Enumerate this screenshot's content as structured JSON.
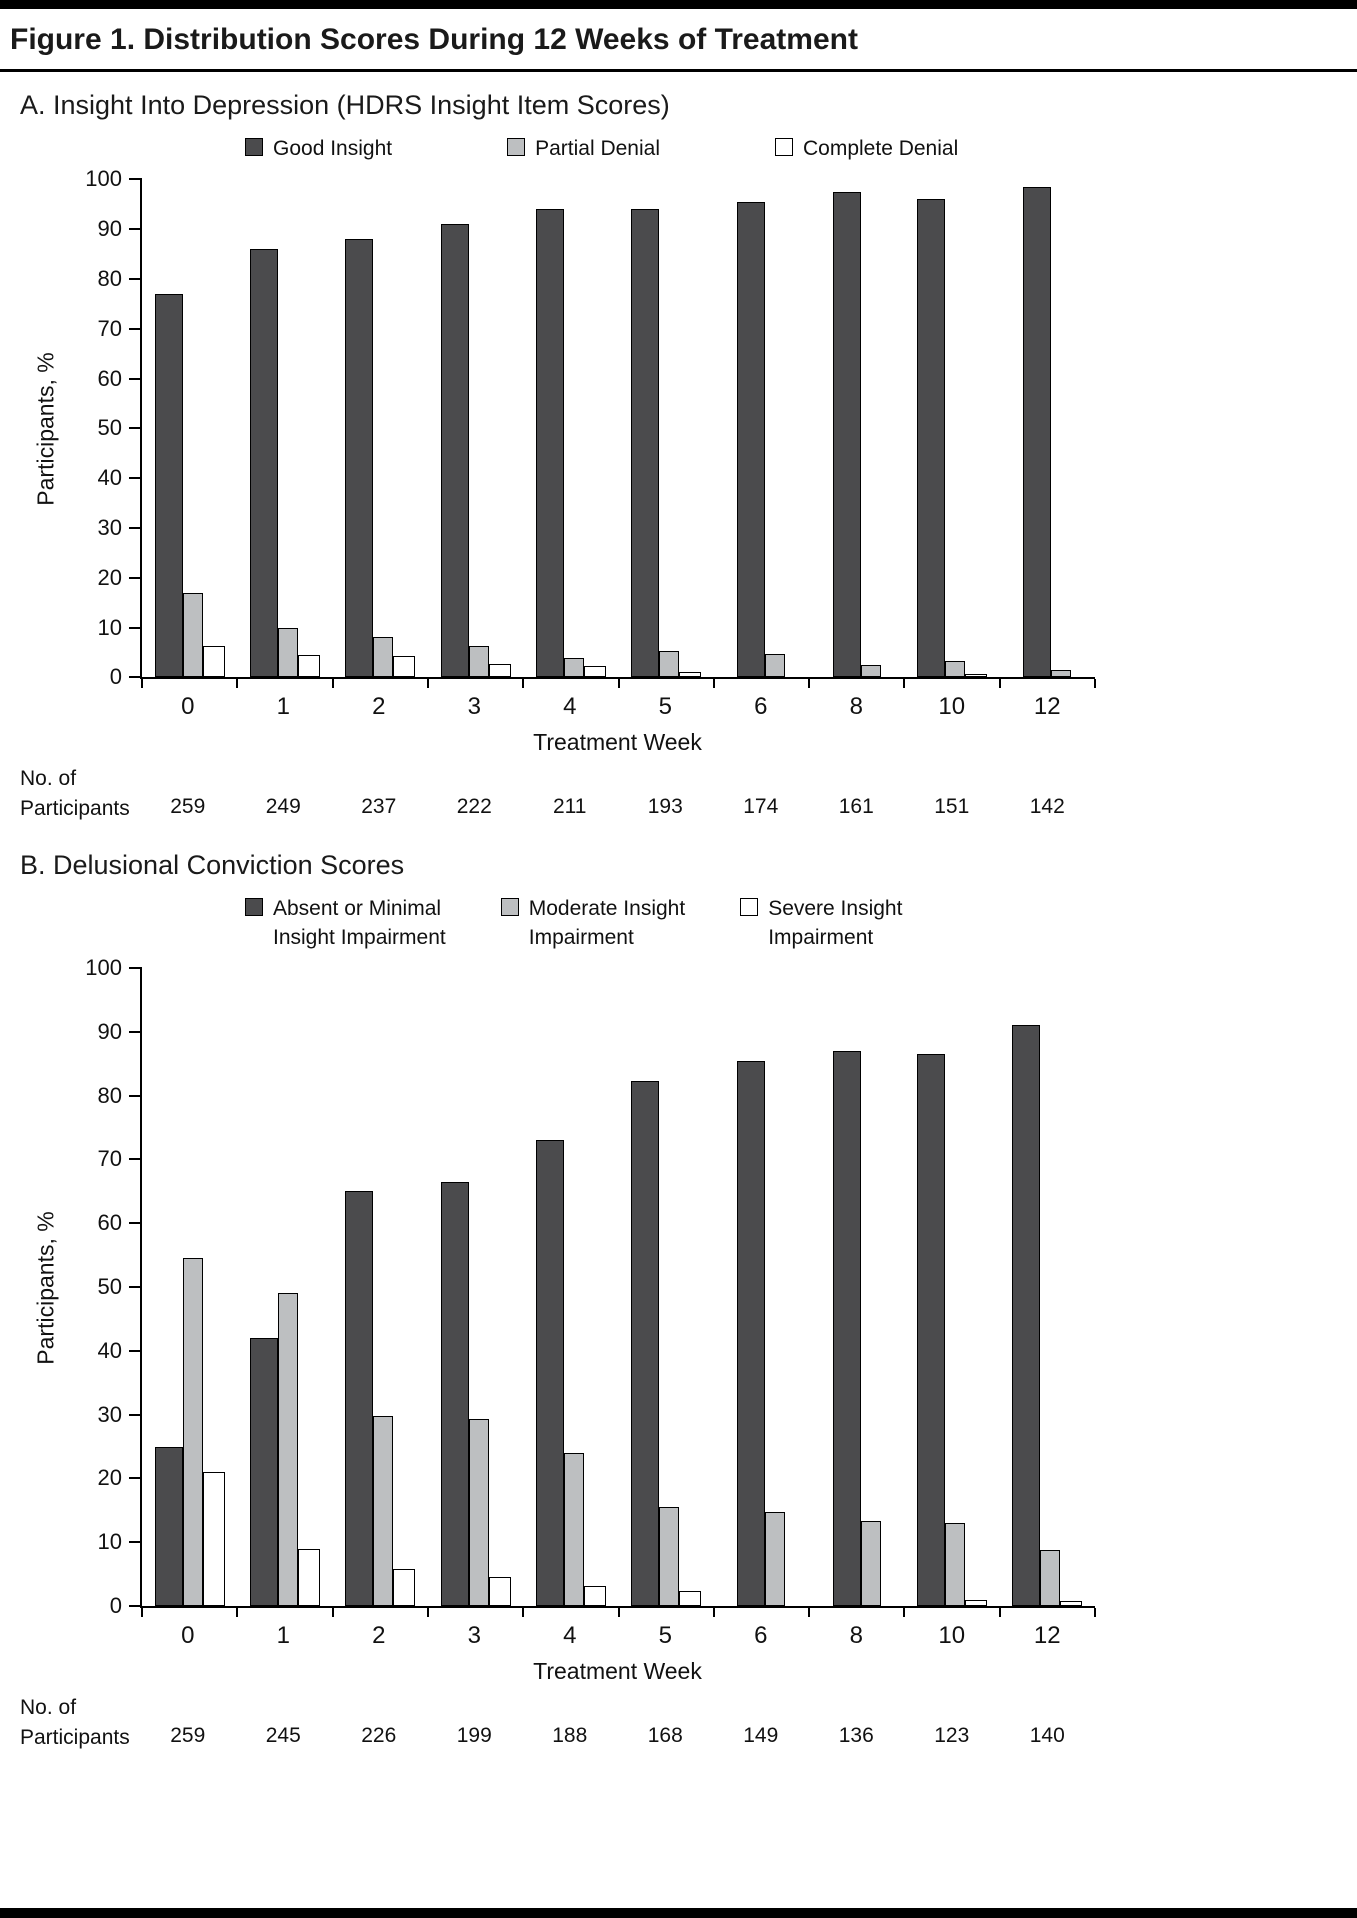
{
  "figure": {
    "title": "Figure 1. Distribution Scores During 12 Weeks of Treatment"
  },
  "colors": {
    "dark": "#4b4b4d",
    "light": "#bdbfc1",
    "white": "#ffffff",
    "axis": "#000000"
  },
  "chart_data": [
    {
      "type": "bar",
      "panel_label": "A. Insight Into Depression (HDRS Insight Item Scores)",
      "categories": [
        "0",
        "1",
        "2",
        "3",
        "4",
        "5",
        "6",
        "8",
        "10",
        "12"
      ],
      "series": [
        {
          "name": "Good Insight",
          "color": "dark",
          "values": [
            77,
            86,
            88,
            91,
            94,
            94,
            95.5,
            97.5,
            96,
            98.5
          ]
        },
        {
          "name": "Partial Denial",
          "color": "light",
          "values": [
            17,
            10,
            8.1,
            6.3,
            3.8,
            5.2,
            4.6,
            2.5,
            3.3,
            1.5
          ]
        },
        {
          "name": "Complete Denial",
          "color": "white",
          "values": [
            6.2,
            4.4,
            4.2,
            2.7,
            2.3,
            1,
            0,
            0,
            0.7,
            0
          ]
        }
      ],
      "xlabel": "Treatment Week",
      "ylabel": "Participants, %",
      "ylim": [
        0,
        100
      ],
      "yticks": [
        0,
        10,
        20,
        30,
        40,
        50,
        60,
        70,
        80,
        90,
        100
      ],
      "grid": false,
      "legend_position": "top",
      "n_label_line1": "No. of",
      "n_label_line2": "Participants",
      "n_values": [
        "259",
        "249",
        "237",
        "222",
        "211",
        "193",
        "174",
        "161",
        "151",
        "142"
      ]
    },
    {
      "type": "bar",
      "panel_label": "B. Delusional Conviction Scores",
      "categories": [
        "0",
        "1",
        "2",
        "3",
        "4",
        "5",
        "6",
        "8",
        "10",
        "12"
      ],
      "series": [
        {
          "name": "Absent or Minimal\nInsight Impairment",
          "color": "dark",
          "values": [
            25,
            42,
            65,
            66.5,
            73,
            82.3,
            85.5,
            87,
            86.5,
            91
          ]
        },
        {
          "name": "Moderate Insight\nImpairment",
          "color": "light",
          "values": [
            54.5,
            49,
            29.8,
            29.3,
            24,
            15.5,
            14.8,
            13.3,
            13,
            8.8
          ]
        },
        {
          "name": "Severe Insight\nImpairment",
          "color": "white",
          "values": [
            21,
            9,
            5.8,
            4.6,
            3.2,
            2.4,
            0,
            0,
            1,
            0.8
          ]
        }
      ],
      "xlabel": "Treatment Week",
      "ylabel": "Participants, %",
      "ylim": [
        0,
        100
      ],
      "yticks": [
        0,
        10,
        20,
        30,
        40,
        50,
        60,
        70,
        80,
        90,
        100
      ],
      "grid": false,
      "legend_position": "top",
      "n_label_line1": "No. of",
      "n_label_line2": "Participants",
      "n_values": [
        "259",
        "245",
        "226",
        "199",
        "188",
        "168",
        "149",
        "136",
        "123",
        "140"
      ]
    }
  ]
}
